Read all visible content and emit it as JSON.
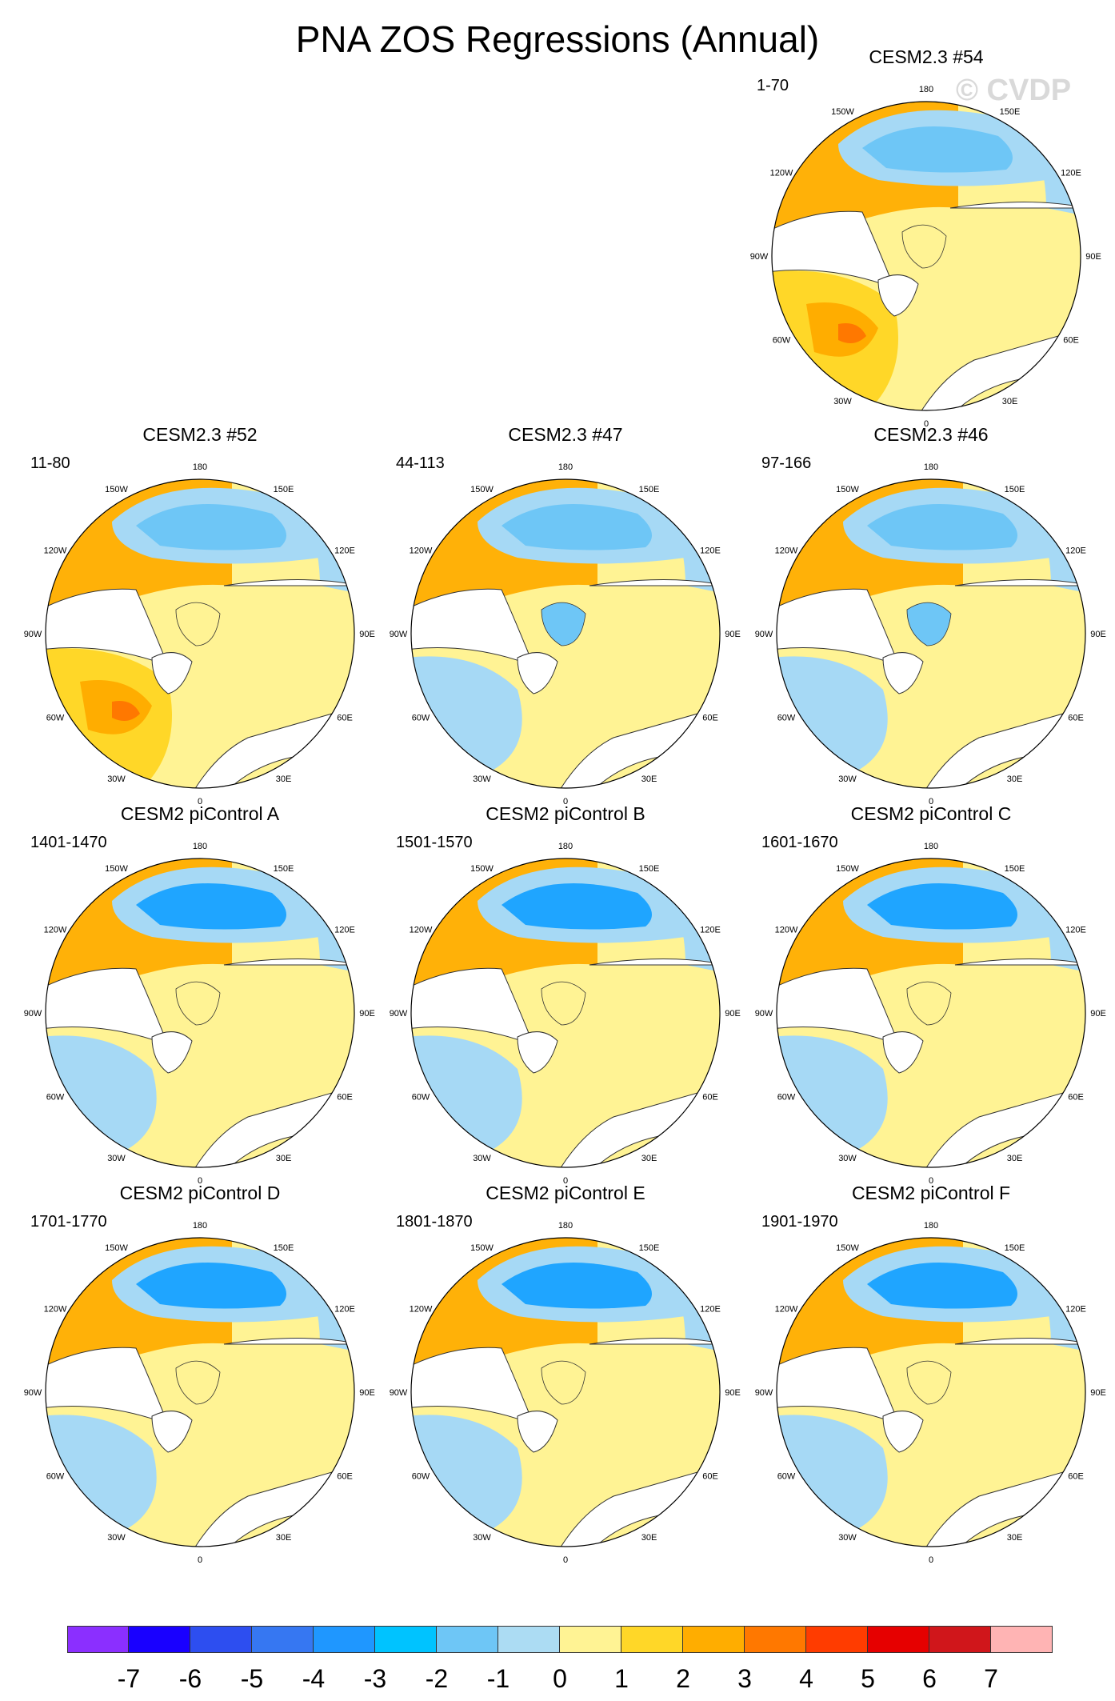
{
  "title": "PNA ZOS Regressions (Annual)",
  "watermark": "© CVDP",
  "colors": {
    "ocean_ne2": "#fff394",
    "ocean_pos": "#ffd728",
    "ocean_pos2": "#ffad00",
    "ocean_pos3": "#ff7800",
    "ocean_neg": "#a6d9f5",
    "ocean_neg2": "#6ec6f6",
    "ocean_neg3": "#1fa5ff",
    "land": "#ffffff",
    "coast": "#333333"
  },
  "lon_labels": [
    "180",
    "150E",
    "120E",
    "90E",
    "60E",
    "30E",
    "0",
    "30W",
    "60W",
    "90W",
    "120W",
    "150W"
  ],
  "panels": [
    {
      "title": "CESM2.3 #54",
      "years": "1-70",
      "pattern": "strong"
    },
    {
      "title": "CESM2.3 #52",
      "years": "11-80",
      "pattern": "strong"
    },
    {
      "title": "CESM2.3 #47",
      "years": "44-113",
      "pattern": "mixed"
    },
    {
      "title": "CESM2.3 #46",
      "years": "97-166",
      "pattern": "mixed"
    },
    {
      "title": "CESM2 piControl A",
      "years": "1401-1470",
      "pattern": "pi"
    },
    {
      "title": "CESM2 piControl B",
      "years": "1501-1570",
      "pattern": "pi"
    },
    {
      "title": "CESM2 piControl C",
      "years": "1601-1670",
      "pattern": "pi"
    },
    {
      "title": "CESM2 piControl D",
      "years": "1701-1770",
      "pattern": "pi"
    },
    {
      "title": "CESM2 piControl E",
      "years": "1801-1870",
      "pattern": "pi"
    },
    {
      "title": "CESM2 piControl F",
      "years": "1901-1970",
      "pattern": "pi"
    }
  ],
  "colorbar": {
    "colors": [
      "#8b2fff",
      "#1900ff",
      "#2d4ef0",
      "#3677f2",
      "#1f97ff",
      "#00c3ff",
      "#6ec6f6",
      "#acdcf3",
      "#fff394",
      "#ffd728",
      "#ffad00",
      "#ff7800",
      "#ff3c00",
      "#e60000",
      "#d0161b",
      "#ffb4b4"
    ],
    "labels": [
      "-7",
      "-6",
      "-5",
      "-4",
      "-3",
      "-2",
      "-1",
      "0",
      "1",
      "2",
      "3",
      "4",
      "5",
      "6",
      "7"
    ]
  }
}
